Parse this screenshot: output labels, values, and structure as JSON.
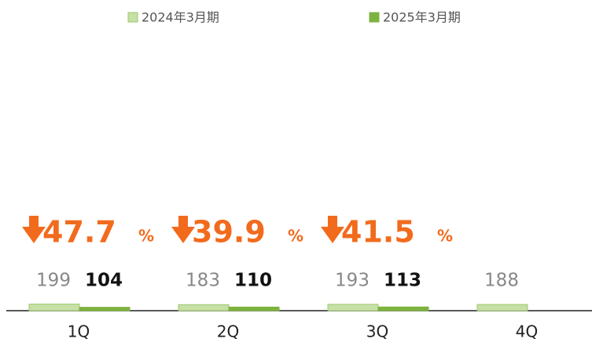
{
  "chart_data": {
    "type": "bar",
    "categories": [
      "1Q",
      "2Q",
      "3Q",
      "4Q"
    ],
    "series": [
      {
        "name": "2024年3月期",
        "color": "#c6e0a6",
        "values": [
          199,
          183,
          193,
          188
        ]
      },
      {
        "name": "2025年3月期",
        "color": "#7db23f",
        "values": [
          104,
          110,
          113,
          null
        ]
      }
    ],
    "ylim": [
      0,
      8000
    ],
    "annotations": [
      {
        "text": "47.7",
        "unit": "%"
      },
      {
        "text": "39.9",
        "unit": "%"
      },
      {
        "text": "41.5",
        "unit": "%"
      }
    ],
    "annotation_color": "#f26b1d",
    "legend": "top"
  }
}
